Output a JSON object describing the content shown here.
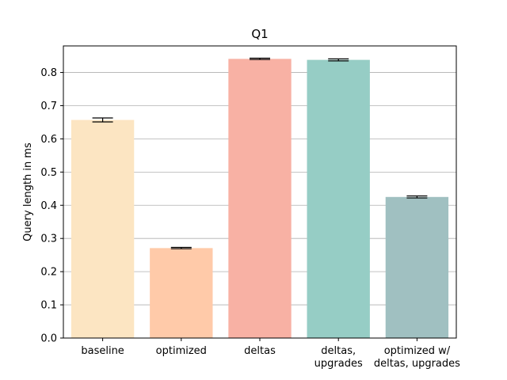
{
  "chart_data": {
    "type": "bar",
    "title": "Q1",
    "xlabel": "",
    "ylabel": "Query length in ms",
    "ylim": [
      0,
      0.88
    ],
    "yticks": [
      0.0,
      0.1,
      0.2,
      0.3,
      0.4,
      0.5,
      0.6,
      0.7,
      0.8
    ],
    "ytick_labels": [
      "0.0",
      "0.1",
      "0.2",
      "0.3",
      "0.4",
      "0.5",
      "0.6",
      "0.7",
      "0.8"
    ],
    "grid": "y",
    "categories": [
      "baseline",
      "optimized",
      "deltas",
      "deltas,\nupgrades",
      "optimized w/\ndeltas, upgrades"
    ],
    "values": [
      0.657,
      0.271,
      0.841,
      0.838,
      0.425
    ],
    "errors": [
      0.006,
      0.002,
      0.002,
      0.003,
      0.003
    ],
    "colors": [
      "#fce5c2",
      "#ffcaa9",
      "#f8b1a4",
      "#96cdc5",
      "#a0c0c1"
    ]
  }
}
